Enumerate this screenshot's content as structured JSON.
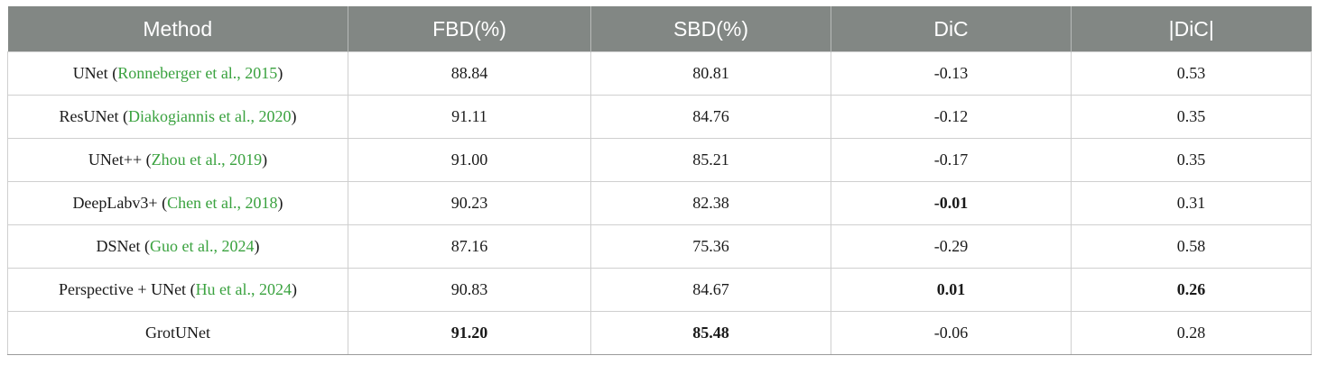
{
  "table": {
    "headers": [
      "Method",
      "FBD(%)",
      "SBD(%)",
      "DiC",
      "|DiC|"
    ],
    "accent_color": "#3aa23f",
    "header_bg": "#828784",
    "rows": [
      {
        "name": "UNet",
        "open": " (",
        "ref": "Ronneberger et al., 2015",
        "close": ")",
        "fbd": "88.84",
        "sbd": "80.81",
        "dic": "-0.13",
        "absdic": "0.53",
        "bold": []
      },
      {
        "name": "ResUNet",
        "open": " (",
        "ref": "Diakogiannis et al., 2020",
        "close": ")",
        "fbd": "91.11",
        "sbd": "84.76",
        "dic": "-0.12",
        "absdic": "0.35",
        "bold": []
      },
      {
        "name": "UNet++",
        "open": " (",
        "ref": "Zhou et al., 2019",
        "close": ")",
        "fbd": "91.00",
        "sbd": "85.21",
        "dic": "-0.17",
        "absdic": "0.35",
        "bold": []
      },
      {
        "name": "DeepLabv3+",
        "open": " (",
        "ref": "Chen et al., 2018",
        "close": ")",
        "fbd": "90.23",
        "sbd": "82.38",
        "dic": "-0.01",
        "absdic": "0.31",
        "bold": [
          "dic"
        ]
      },
      {
        "name": "DSNet",
        "open": " (",
        "ref": "Guo et al., 2024",
        "close": ")",
        "fbd": "87.16",
        "sbd": "75.36",
        "dic": "-0.29",
        "absdic": "0.58",
        "bold": []
      },
      {
        "name": "Perspective + UNet",
        "open": " (",
        "ref": "Hu et al., 2024",
        "close": ")",
        "fbd": "90.83",
        "sbd": "84.67",
        "dic": "0.01",
        "absdic": "0.26",
        "bold": [
          "dic",
          "absdic"
        ]
      },
      {
        "name": "GrotUNet",
        "open": "",
        "ref": "",
        "close": "",
        "fbd": "91.20",
        "sbd": "85.48",
        "dic": "-0.06",
        "absdic": "0.28",
        "bold": [
          "fbd",
          "sbd"
        ]
      }
    ]
  }
}
